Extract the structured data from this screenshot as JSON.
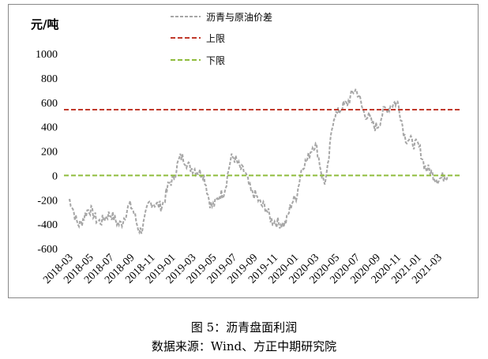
{
  "chart_data": {
    "type": "line",
    "unit_label": "元/吨",
    "ylim": [
      -600,
      1000
    ],
    "yticks": [
      1000,
      800,
      600,
      400,
      200,
      0,
      -200,
      -400,
      -600
    ],
    "xticks": [
      "2018-03",
      "2018-05",
      "2018-07",
      "2018-09",
      "2018-11",
      "2019-01",
      "2019-03",
      "2019-05",
      "2019-07",
      "2019-09",
      "2019-11",
      "2020-01",
      "2020-03",
      "2020-05",
      "2020-07",
      "2020-09",
      "2020-11",
      "2021-01",
      "2021-03"
    ],
    "legend_position": "top-center",
    "series": [
      {
        "name": "沥青与原油价差",
        "color": "#a6a6a6",
        "style": "dashed",
        "x": [
          "2018-03",
          "2018-04",
          "2018-05",
          "2018-06",
          "2018-07",
          "2018-08",
          "2018-09",
          "2018-10",
          "2018-11",
          "2018-12",
          "2019-01",
          "2019-02",
          "2019-03",
          "2019-04",
          "2019-05",
          "2019-06",
          "2019-07",
          "2019-08",
          "2019-09",
          "2019-10",
          "2019-11",
          "2019-12",
          "2020-01",
          "2020-02",
          "2020-03",
          "2020-04",
          "2020-05",
          "2020-06",
          "2020-07",
          "2020-08",
          "2020-09",
          "2020-10",
          "2020-11",
          "2020-12",
          "2021-01",
          "2021-02",
          "2021-03",
          "2021-04"
        ],
        "values": [
          -200,
          -400,
          -280,
          -380,
          -320,
          -400,
          -250,
          -450,
          -220,
          -250,
          -50,
          150,
          60,
          20,
          -250,
          -150,
          150,
          40,
          -150,
          -250,
          -380,
          -400,
          -200,
          100,
          250,
          -50,
          500,
          580,
          700,
          500,
          400,
          550,
          600,
          300,
          250,
          50,
          -30,
          0
        ]
      },
      {
        "name": "上限",
        "color": "#c0392b",
        "style": "dashed",
        "constant": 540
      },
      {
        "name": "下限",
        "color": "#8fbc3c",
        "style": "dashed",
        "constant": 0
      }
    ]
  },
  "caption": {
    "title": "图 5：沥青盘面利润",
    "source": "数据来源：Wind、方正中期研究院"
  }
}
